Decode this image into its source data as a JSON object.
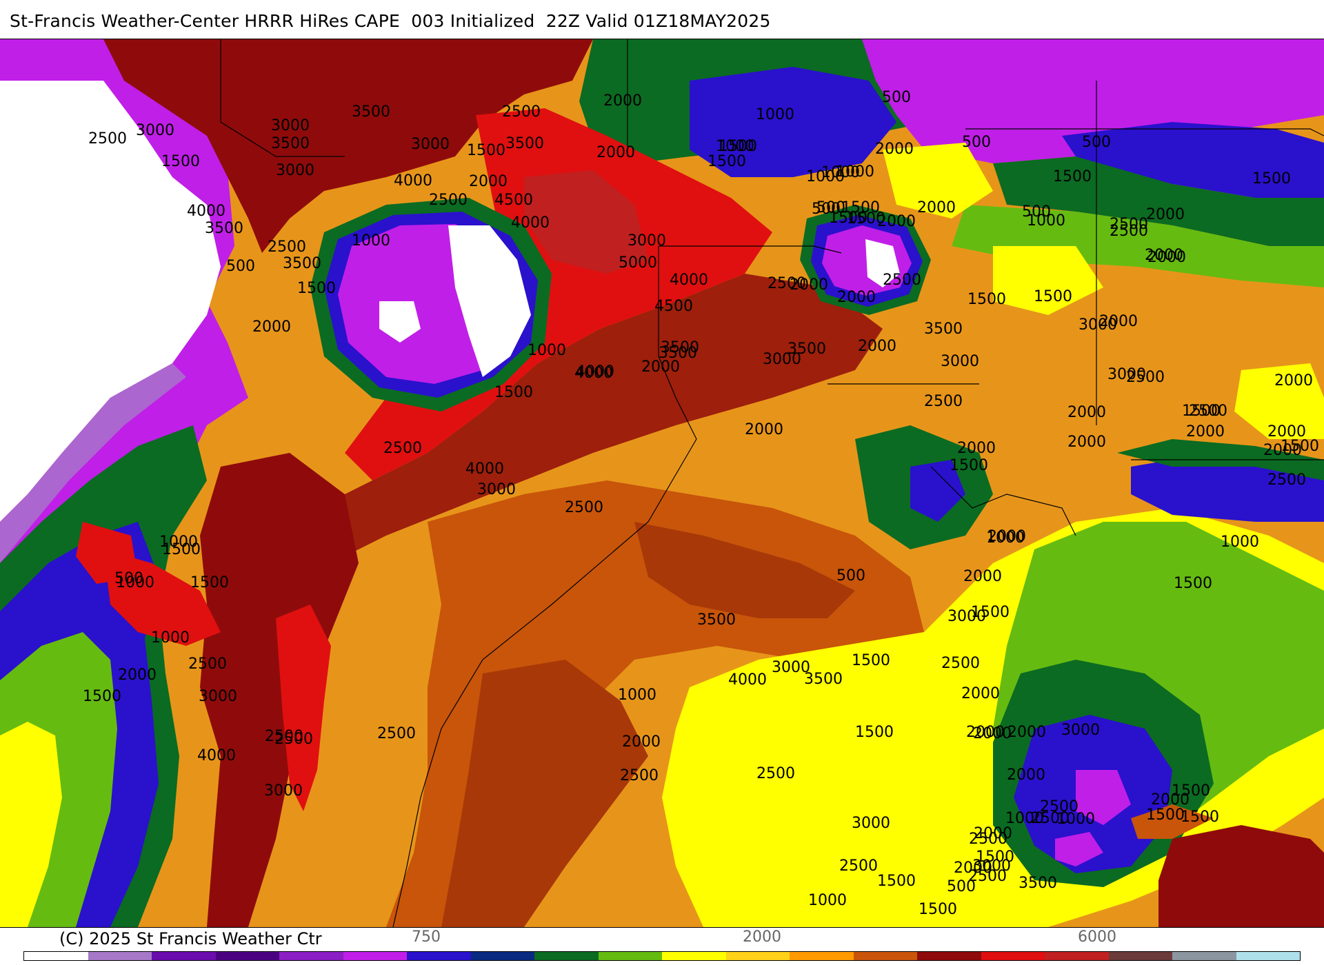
{
  "header": {
    "title": "St-Francis Weather-Center HRRR HiRes CAPE  003 Initialized  22Z Valid 01Z18MAY2025"
  },
  "footer": {
    "copyright": "(C) 2025 St Francis Weather Ctr",
    "colorbar_ticks": [
      "750",
      "2000",
      "6000"
    ]
  },
  "colorbar": {
    "colors": [
      "#ffffff",
      "#a678c8",
      "#6a0dad",
      "#4b0082",
      "#8b1fc4",
      "#c01fe8",
      "#2a11cc",
      "#0a2a80",
      "#0b6b22",
      "#66bb11",
      "#ffff00",
      "#ffd21a",
      "#ff9a00",
      "#c8550a",
      "#8f0b0b",
      "#e01010",
      "#c02020",
      "#6b3a3a",
      "#8c96a0",
      "#aee0ec"
    ]
  },
  "map": {
    "background_fill": "#e7951a",
    "contour_labels": [
      {
        "t": "3000"
      },
      {
        "t": "2500"
      },
      {
        "t": "3500"
      },
      {
        "t": "3000"
      },
      {
        "t": "3500"
      },
      {
        "t": "3000"
      },
      {
        "t": "1500"
      },
      {
        "t": "3500"
      },
      {
        "t": "2500"
      },
      {
        "t": "2000"
      },
      {
        "t": "500"
      },
      {
        "t": "1000"
      },
      {
        "t": "4000"
      },
      {
        "t": "2000"
      },
      {
        "t": "4500"
      },
      {
        "t": "2000"
      },
      {
        "t": "1500"
      },
      {
        "t": "1000"
      },
      {
        "t": "2500"
      },
      {
        "t": "1500"
      },
      {
        "t": "1000"
      },
      {
        "t": "1500"
      },
      {
        "t": "500"
      },
      {
        "t": "1000"
      },
      {
        "t": "500"
      },
      {
        "t": "1500"
      },
      {
        "t": "4000"
      },
      {
        "t": "3500"
      },
      {
        "t": "3000"
      },
      {
        "t": "4000"
      },
      {
        "t": "1000"
      },
      {
        "t": "2500"
      },
      {
        "t": "3500"
      },
      {
        "t": "500"
      },
      {
        "t": "1500"
      },
      {
        "t": "2000"
      },
      {
        "t": "3000"
      },
      {
        "t": "5000"
      },
      {
        "t": "4000"
      },
      {
        "t": "4500"
      },
      {
        "t": "2500"
      },
      {
        "t": "2000"
      },
      {
        "t": "1000"
      },
      {
        "t": "500"
      },
      {
        "t": "2000"
      },
      {
        "t": "1500"
      },
      {
        "t": "500"
      },
      {
        "t": "2000"
      },
      {
        "t": "2000"
      },
      {
        "t": "1500"
      },
      {
        "t": "2000"
      },
      {
        "t": "2500"
      },
      {
        "t": "1500"
      },
      {
        "t": "4000"
      },
      {
        "t": "1000"
      },
      {
        "t": "1500"
      },
      {
        "t": "3500"
      },
      {
        "t": "3500"
      },
      {
        "t": "3000"
      },
      {
        "t": "2000"
      },
      {
        "t": "3500"
      },
      {
        "t": "3000"
      },
      {
        "t": "2500"
      },
      {
        "t": "2000"
      },
      {
        "t": "1500"
      },
      {
        "t": "2000"
      },
      {
        "t": "2500"
      },
      {
        "t": "2000"
      },
      {
        "t": "2000"
      },
      {
        "t": "3000"
      },
      {
        "t": "2500"
      },
      {
        "t": "3000"
      },
      {
        "t": "3500"
      },
      {
        "t": "4000"
      },
      {
        "t": "4000"
      },
      {
        "t": "3000"
      },
      {
        "t": "2500"
      },
      {
        "t": "2500"
      },
      {
        "t": "2000"
      },
      {
        "t": "2000"
      },
      {
        "t": "1500"
      },
      {
        "t": "500"
      },
      {
        "t": "1000"
      },
      {
        "t": "1500"
      },
      {
        "t": "2500"
      },
      {
        "t": "2000"
      },
      {
        "t": "1500"
      },
      {
        "t": "2000"
      },
      {
        "t": "1500"
      },
      {
        "t": "1500"
      },
      {
        "t": "1000"
      },
      {
        "t": "1500"
      },
      {
        "t": "2000"
      },
      {
        "t": "2000"
      },
      {
        "t": "2500"
      },
      {
        "t": "2000"
      },
      {
        "t": "2500"
      },
      {
        "t": "2000"
      },
      {
        "t": "2000"
      },
      {
        "t": "2000"
      },
      {
        "t": "1000"
      },
      {
        "t": "3000"
      },
      {
        "t": "2000"
      },
      {
        "t": "500"
      },
      {
        "t": "1500"
      },
      {
        "t": "2500"
      },
      {
        "t": "3000"
      },
      {
        "t": "3500"
      },
      {
        "t": "4000"
      },
      {
        "t": "3000"
      },
      {
        "t": "1000"
      },
      {
        "t": "1500"
      },
      {
        "t": "1500"
      },
      {
        "t": "1000"
      },
      {
        "t": "2500"
      },
      {
        "t": "1000"
      },
      {
        "t": "1500"
      },
      {
        "t": "2000"
      },
      {
        "t": "3000"
      },
      {
        "t": "2500"
      },
      {
        "t": "2500"
      },
      {
        "t": "2500"
      },
      {
        "t": "1000"
      },
      {
        "t": "2000"
      },
      {
        "t": "2500"
      },
      {
        "t": "4000"
      },
      {
        "t": "3500"
      },
      {
        "t": "2500"
      },
      {
        "t": "2000"
      },
      {
        "t": "2000"
      },
      {
        "t": "2000"
      },
      {
        "t": "1500"
      },
      {
        "t": "1500"
      },
      {
        "t": "2000"
      },
      {
        "t": "1500"
      },
      {
        "t": "1000"
      },
      {
        "t": "2000"
      },
      {
        "t": "1500"
      },
      {
        "t": "2500"
      },
      {
        "t": "2000"
      },
      {
        "t": "2500"
      },
      {
        "t": "2000"
      },
      {
        "t": "1500"
      },
      {
        "t": "500"
      },
      {
        "t": "1500"
      },
      {
        "t": "3000"
      },
      {
        "t": "3000"
      },
      {
        "t": "1000"
      },
      {
        "t": "2000"
      },
      {
        "t": "2500"
      },
      {
        "t": "3500"
      },
      {
        "t": "3000"
      },
      {
        "t": "2500"
      },
      {
        "t": "500"
      },
      {
        "t": "1500"
      },
      {
        "t": "1000"
      },
      {
        "t": "2500"
      },
      {
        "t": "1500"
      }
    ]
  }
}
